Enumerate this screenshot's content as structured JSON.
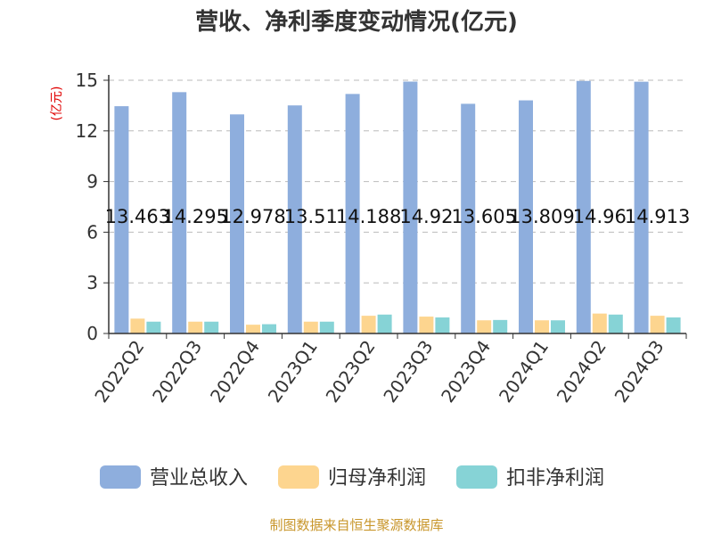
{
  "chart_data": {
    "type": "bar",
    "title": "营收、净利季度变动情况(亿元)",
    "unit_label": "(亿元)",
    "xlabel": "",
    "ylabel": "",
    "ylim": [
      0,
      15
    ],
    "yticks": [
      0,
      3,
      6,
      9,
      12,
      15
    ],
    "grid": "horizontal-dashed",
    "legend_position": "bottom",
    "categories": [
      "2022Q2",
      "2022Q3",
      "2022Q4",
      "2023Q1",
      "2023Q2",
      "2023Q3",
      "2023Q4",
      "2024Q1",
      "2024Q2",
      "2024Q3"
    ],
    "series": [
      {
        "name": "营业总收入",
        "color": "#8eaedd",
        "values": [
          13.463,
          14.295,
          12.978,
          13.51,
          14.188,
          14.92,
          13.605,
          13.809,
          14.96,
          14.913
        ],
        "labels": [
          "13.463",
          "14.295",
          "12.978",
          "13.51",
          "14.188",
          "14.92",
          "13.605",
          "13.809",
          "14.96",
          "14.913"
        ]
      },
      {
        "name": "归母净利润",
        "color": "#fdd58f",
        "values": [
          0.88,
          0.7,
          0.52,
          0.7,
          1.05,
          1.0,
          0.78,
          0.78,
          1.18,
          1.05
        ]
      },
      {
        "name": "扣非净利润",
        "color": "#86d3d6",
        "values": [
          0.7,
          0.7,
          0.55,
          0.7,
          1.12,
          0.95,
          0.8,
          0.78,
          1.12,
          0.95
        ]
      }
    ],
    "source": "制图数据来自恒生聚源数据库"
  }
}
